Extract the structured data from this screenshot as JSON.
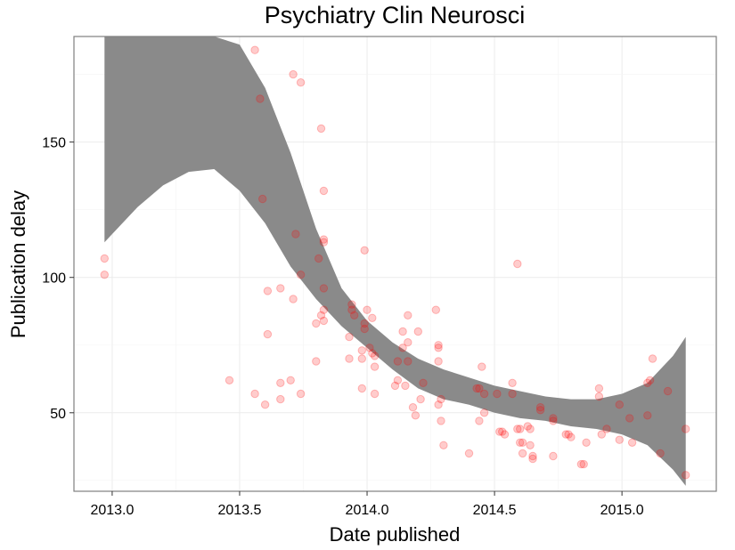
{
  "chart_data": {
    "type": "scatter",
    "title": "Psychiatry Clin Neurosci",
    "xlabel": "Date published",
    "ylabel": "Publication delay",
    "xlim": [
      2012.85,
      2015.37
    ],
    "ylim": [
      21,
      189
    ],
    "x_ticks": [
      2013.0,
      2013.5,
      2014.0,
      2014.5,
      2015.0
    ],
    "x_tick_labels": [
      "2013.0",
      "2013.5",
      "2014.0",
      "2014.5",
      "2015.0"
    ],
    "y_ticks": [
      50,
      100,
      150
    ],
    "y_tick_labels": [
      "50",
      "100",
      "150"
    ],
    "grid": true,
    "point_color": "#ff0000",
    "point_alpha": 0.2,
    "band_color": "#8a8a8a",
    "points": [
      [
        2012.97,
        107
      ],
      [
        2012.97,
        101
      ],
      [
        2013.46,
        62
      ],
      [
        2013.56,
        184
      ],
      [
        2013.56,
        57
      ],
      [
        2013.58,
        166
      ],
      [
        2013.59,
        129
      ],
      [
        2013.6,
        53
      ],
      [
        2013.61,
        79
      ],
      [
        2013.61,
        95
      ],
      [
        2013.66,
        96
      ],
      [
        2013.66,
        61
      ],
      [
        2013.66,
        55
      ],
      [
        2013.7,
        62
      ],
      [
        2013.71,
        92
      ],
      [
        2013.71,
        175
      ],
      [
        2013.72,
        116
      ],
      [
        2013.74,
        172
      ],
      [
        2013.74,
        101
      ],
      [
        2013.74,
        57
      ],
      [
        2013.8,
        69
      ],
      [
        2013.8,
        83
      ],
      [
        2013.81,
        107
      ],
      [
        2013.82,
        155
      ],
      [
        2013.82,
        86
      ],
      [
        2013.83,
        132
      ],
      [
        2013.83,
        114
      ],
      [
        2013.83,
        113
      ],
      [
        2013.83,
        96
      ],
      [
        2013.83,
        88
      ],
      [
        2013.83,
        84
      ],
      [
        2013.93,
        78
      ],
      [
        2013.93,
        70
      ],
      [
        2013.94,
        90
      ],
      [
        2013.94,
        88
      ],
      [
        2013.95,
        86
      ],
      [
        2013.98,
        59
      ],
      [
        2013.98,
        70
      ],
      [
        2013.98,
        73
      ],
      [
        2013.99,
        81
      ],
      [
        2013.99,
        83
      ],
      [
        2013.99,
        110
      ],
      [
        2014.0,
        88
      ],
      [
        2014.01,
        74
      ],
      [
        2014.02,
        72
      ],
      [
        2014.02,
        85
      ],
      [
        2014.03,
        67
      ],
      [
        2014.03,
        57
      ],
      [
        2014.03,
        71
      ],
      [
        2014.11,
        60
      ],
      [
        2014.12,
        62
      ],
      [
        2014.12,
        69
      ],
      [
        2014.14,
        80
      ],
      [
        2014.14,
        74
      ],
      [
        2014.15,
        60
      ],
      [
        2014.16,
        86
      ],
      [
        2014.16,
        69
      ],
      [
        2014.16,
        76
      ],
      [
        2014.18,
        52
      ],
      [
        2014.19,
        49
      ],
      [
        2014.2,
        80
      ],
      [
        2014.21,
        55
      ],
      [
        2014.22,
        61
      ],
      [
        2014.27,
        88
      ],
      [
        2014.28,
        74
      ],
      [
        2014.28,
        75
      ],
      [
        2014.28,
        69
      ],
      [
        2014.28,
        53
      ],
      [
        2014.29,
        55
      ],
      [
        2014.29,
        47
      ],
      [
        2014.3,
        38
      ],
      [
        2014.4,
        35
      ],
      [
        2014.43,
        59
      ],
      [
        2014.44,
        59
      ],
      [
        2014.44,
        47
      ],
      [
        2014.45,
        67
      ],
      [
        2014.46,
        50
      ],
      [
        2014.46,
        57
      ],
      [
        2014.51,
        57
      ],
      [
        2014.52,
        43
      ],
      [
        2014.53,
        43
      ],
      [
        2014.54,
        42
      ],
      [
        2014.57,
        61
      ],
      [
        2014.57,
        57
      ],
      [
        2014.59,
        105
      ],
      [
        2014.59,
        44
      ],
      [
        2014.6,
        39
      ],
      [
        2014.6,
        44
      ],
      [
        2014.61,
        39
      ],
      [
        2014.61,
        35
      ],
      [
        2014.63,
        45
      ],
      [
        2014.64,
        38
      ],
      [
        2014.64,
        44
      ],
      [
        2014.65,
        34
      ],
      [
        2014.65,
        33
      ],
      [
        2014.68,
        51
      ],
      [
        2014.68,
        52
      ],
      [
        2014.73,
        48
      ],
      [
        2014.73,
        47
      ],
      [
        2014.73,
        34
      ],
      [
        2014.78,
        42
      ],
      [
        2014.79,
        42
      ],
      [
        2014.8,
        41
      ],
      [
        2014.84,
        31
      ],
      [
        2014.85,
        31
      ],
      [
        2014.86,
        39
      ],
      [
        2014.91,
        59
      ],
      [
        2014.91,
        56
      ],
      [
        2014.92,
        42
      ],
      [
        2014.94,
        44
      ],
      [
        2014.99,
        53
      ],
      [
        2014.99,
        40
      ],
      [
        2015.03,
        48
      ],
      [
        2015.04,
        39
      ],
      [
        2015.1,
        49
      ],
      [
        2015.1,
        61
      ],
      [
        2015.11,
        62
      ],
      [
        2015.12,
        70
      ],
      [
        2015.15,
        35
      ],
      [
        2015.18,
        58
      ],
      [
        2015.25,
        44
      ],
      [
        2015.25,
        27
      ]
    ],
    "band": {
      "x": [
        2012.97,
        2013.1,
        2013.2,
        2013.3,
        2013.4,
        2013.5,
        2013.6,
        2013.7,
        2013.8,
        2013.9,
        2014.0,
        2014.1,
        2014.2,
        2014.3,
        2014.4,
        2014.5,
        2014.6,
        2014.7,
        2014.8,
        2014.9,
        2015.0,
        2015.1,
        2015.2,
        2015.25
      ],
      "upper": [
        190,
        189,
        189,
        189,
        189,
        186,
        170,
        146,
        118,
        96,
        84,
        76,
        70,
        66,
        63,
        60,
        58,
        56,
        55,
        55,
        57,
        61,
        71,
        78
      ],
      "lower": [
        113,
        126,
        134,
        139,
        140,
        132,
        120,
        104,
        92,
        82,
        74,
        66,
        59,
        55,
        53,
        50,
        48,
        47,
        45,
        44,
        42,
        38,
        29,
        23
      ]
    }
  }
}
